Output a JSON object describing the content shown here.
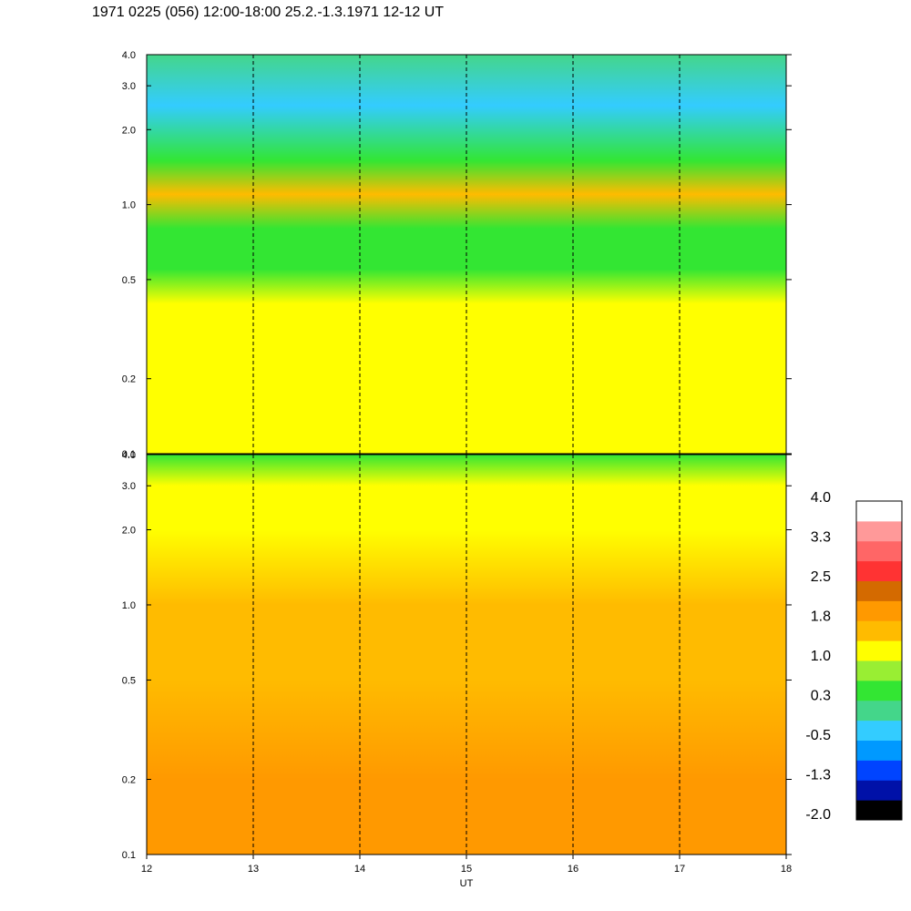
{
  "title": "1971 0225 (056) 12:00-18:00 25.2.-1.3.1971  12-12 UT",
  "chart_data": [
    {
      "type": "heatmap",
      "panel": "upper",
      "x_range": [
        12,
        18
      ],
      "y_range": [
        0.1,
        4.0
      ],
      "y_scale": "log",
      "y_ticks": [
        0.1,
        0.2,
        0.5,
        1.0,
        2.0,
        3.0,
        4.0
      ],
      "y_tick_labels": [
        "0.1",
        "0.2",
        "0.5",
        "1.0",
        "2.0",
        "3.0",
        "4.0"
      ],
      "dashed_vertical_lines": [
        13,
        14,
        15,
        16,
        17
      ],
      "profile": [
        {
          "y": 0.1,
          "value": 1.0
        },
        {
          "y": 0.2,
          "value": 1.0
        },
        {
          "y": 0.4,
          "value": 1.0
        },
        {
          "y": 0.55,
          "value": 0.4
        },
        {
          "y": 0.8,
          "value": 0.6
        },
        {
          "y": 1.1,
          "value": 1.6
        },
        {
          "y": 1.5,
          "value": 0.3
        },
        {
          "y": 2.5,
          "value": -0.2
        },
        {
          "y": 4.0,
          "value": -0.1
        }
      ]
    },
    {
      "type": "heatmap",
      "panel": "lower",
      "x_range": [
        12,
        18
      ],
      "x_ticks": [
        12,
        13,
        14,
        15,
        16,
        17,
        18
      ],
      "x_tick_labels": [
        "12",
        "13",
        "14",
        "15",
        "16",
        "17",
        "18"
      ],
      "xlabel": "UT",
      "y_range": [
        0.1,
        4.0
      ],
      "y_scale": "log",
      "y_ticks": [
        0.1,
        0.2,
        0.5,
        1.0,
        2.0,
        3.0,
        4.0
      ],
      "y_tick_labels": [
        "0.1",
        "0.2",
        "0.5",
        "1.0",
        "2.0",
        "3.0",
        "4.0"
      ],
      "dashed_vertical_lines": [
        13,
        14,
        15,
        16,
        17
      ],
      "profile": [
        {
          "y": 0.1,
          "value": 1.9
        },
        {
          "y": 0.2,
          "value": 1.9
        },
        {
          "y": 0.5,
          "value": 1.7
        },
        {
          "y": 1.0,
          "value": 1.4
        },
        {
          "y": 2.0,
          "value": 1.2
        },
        {
          "y": 3.0,
          "value": 1.0
        },
        {
          "y": 4.0,
          "value": 0.6
        }
      ]
    }
  ],
  "colorbar": {
    "range": [
      -2.0,
      4.0
    ],
    "labels": [
      "4.0",
      "3.3",
      "2.5",
      "1.8",
      "1.0",
      "0.3",
      "-0.5",
      "-1.3",
      "-2.0"
    ],
    "colors_bottom_to_top": [
      "#000000",
      "#0011a8",
      "#0044ff",
      "#0099ff",
      "#33ccff",
      "#44d68a",
      "#33e633",
      "#99ee33",
      "#ffff00",
      "#ffbb00",
      "#ff9900",
      "#d46a00",
      "#ff3333",
      "#ff6666",
      "#ff9999",
      "#ffffff"
    ]
  }
}
